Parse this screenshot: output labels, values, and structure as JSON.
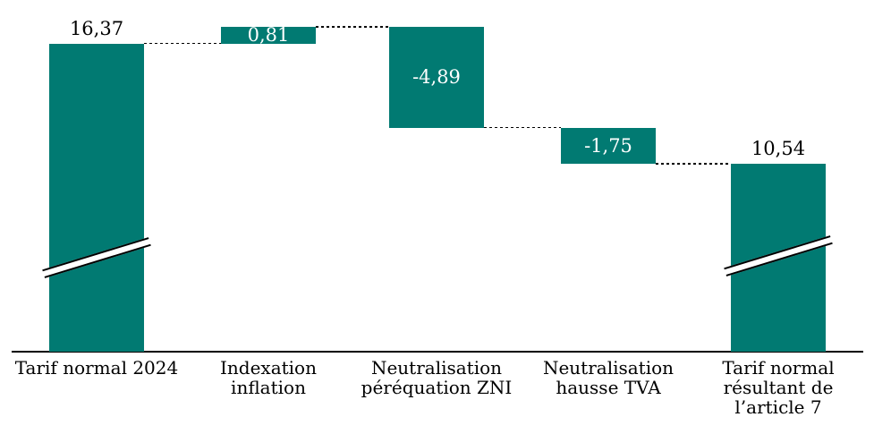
{
  "chart_data": {
    "type": "bar",
    "subtype": "waterfall",
    "title": "",
    "categories": [
      "Tarif normal 2024",
      "Indexation inflation",
      "Neutralisation péréquation ZNI",
      "Neutralisation hausse TVA",
      "Tarif normal résultant de l’article 7"
    ],
    "category_label_lines": [
      [
        "Tarif normal 2024"
      ],
      [
        "Indexation",
        "inflation"
      ],
      [
        "Neutralisation",
        "péréquation ZNI"
      ],
      [
        "Neutralisation",
        "hausse TVA"
      ],
      [
        "Tarif normal",
        "résultant de",
        "l’article 7"
      ]
    ],
    "values": [
      16.37,
      0.81,
      -4.89,
      -1.75,
      10.54
    ],
    "value_labels": [
      "16,37",
      "0,81",
      "-4,89",
      "-1,75",
      "10,54"
    ],
    "bar_roles": [
      "total",
      "delta",
      "delta",
      "delta",
      "total"
    ],
    "value_label_placement": [
      "above",
      "inside",
      "inside",
      "inside",
      "above"
    ],
    "axis_break_bars": [
      0,
      4
    ],
    "connector_style": "dashed",
    "grid": "off",
    "legend": "none",
    "colors": {
      "bar": "#017A72",
      "value_inside": "#FFFFFF",
      "value_outside": "#000000",
      "connector": "#000000",
      "axis": "#000000",
      "background": "#FFFFFF"
    }
  }
}
